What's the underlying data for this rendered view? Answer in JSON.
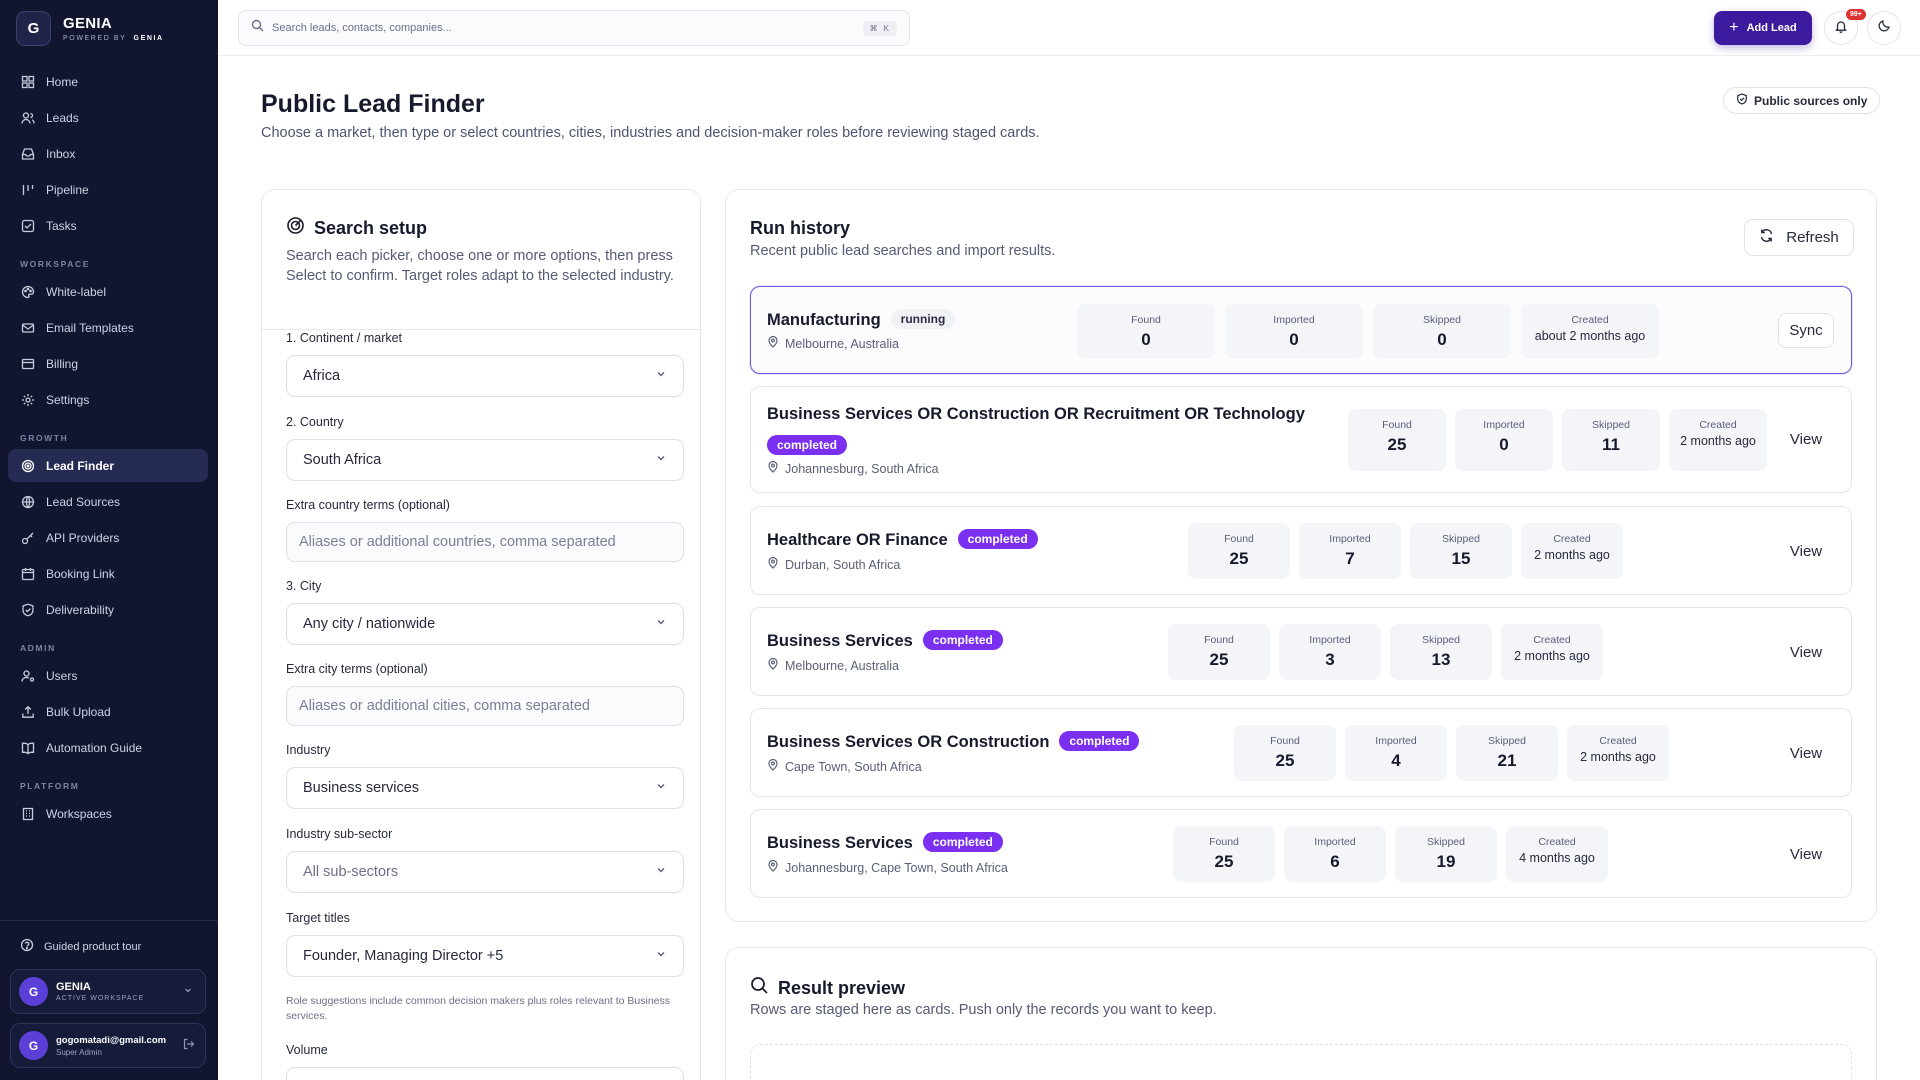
{
  "brand": {
    "logo_letter": "G",
    "name": "GENIA",
    "powered_prefix": "POWERED BY",
    "powered_name": "GENIA"
  },
  "nav": {
    "main": [
      {
        "label": "Home",
        "icon": "home-icon"
      },
      {
        "label": "Leads",
        "icon": "users-icon"
      },
      {
        "label": "Inbox",
        "icon": "inbox-icon"
      },
      {
        "label": "Pipeline",
        "icon": "pipeline-icon"
      },
      {
        "label": "Tasks",
        "icon": "tasks-icon"
      }
    ],
    "workspace_title": "WORKSPACE",
    "workspace": [
      {
        "label": "White-label",
        "icon": "palette-icon"
      },
      {
        "label": "Email Templates",
        "icon": "mail-icon"
      },
      {
        "label": "Billing",
        "icon": "card-icon"
      },
      {
        "label": "Settings",
        "icon": "gear-icon"
      }
    ],
    "growth_title": "GROWTH",
    "growth": [
      {
        "label": "Lead Finder",
        "icon": "target-icon",
        "active": true
      },
      {
        "label": "Lead Sources",
        "icon": "globe-icon"
      },
      {
        "label": "API Providers",
        "icon": "key-icon"
      },
      {
        "label": "Booking Link",
        "icon": "calendar-icon"
      },
      {
        "label": "Deliverability",
        "icon": "shield-icon"
      }
    ],
    "admin_title": "ADMIN",
    "admin": [
      {
        "label": "Users",
        "icon": "user-cog-icon"
      },
      {
        "label": "Bulk Upload",
        "icon": "upload-icon"
      },
      {
        "label": "Automation Guide",
        "icon": "book-icon"
      }
    ],
    "platform_title": "PLATFORM",
    "platform": [
      {
        "label": "Workspaces",
        "icon": "building-icon"
      }
    ]
  },
  "sidebar_footer": {
    "tour_label": "Guided product tour",
    "workspace": {
      "avatar": "G",
      "name": "GENIA",
      "sub": "ACTIVE WORKSPACE"
    },
    "user": {
      "avatar": "G",
      "email": "gogomatadi@gmail.com",
      "role": "Super Admin"
    }
  },
  "topbar": {
    "search_placeholder": "Search leads, contacts, companies...",
    "shortcut": "⌘ K",
    "add_lead_label": "Add Lead",
    "notif_count": "99+"
  },
  "page": {
    "title": "Public Lead Finder",
    "subtitle": "Choose a market, then type or select countries, cities, industries and decision-maker roles before reviewing staged cards.",
    "public_badge": "Public sources only"
  },
  "setup": {
    "title": "Search setup",
    "description": "Search each picker, choose one or more options, then press Select to confirm. Target roles adapt to the selected industry.",
    "continent_label": "1. Continent / market",
    "continent_value": "Africa",
    "country_label": "2. Country",
    "country_value": "South Africa",
    "extra_country_label": "Extra country terms (optional)",
    "extra_country_placeholder": "Aliases or additional countries, comma separated",
    "city_label": "3. City",
    "city_value": "Any city / nationwide",
    "extra_city_label": "Extra city terms (optional)",
    "extra_city_placeholder": "Aliases or additional cities, comma separated",
    "industry_label": "Industry",
    "industry_value": "Business services",
    "subsector_label": "Industry sub-sector",
    "subsector_value": "All sub-sectors",
    "titles_label": "Target titles",
    "titles_value": "Founder, Managing Director +5",
    "hint": "Role suggestions include common decision makers plus roles relevant to Business services.",
    "volume_label": "Volume"
  },
  "history": {
    "title": "Run history",
    "subtitle": "Recent public lead searches and import results.",
    "refresh_label": "Refresh",
    "labels": {
      "found": "Found",
      "imported": "Imported",
      "skipped": "Skipped",
      "created": "Created"
    },
    "runs": [
      {
        "name": "Manufacturing",
        "status": "running",
        "location": "Melbourne, Australia",
        "found": "0",
        "imported": "0",
        "skipped": "0",
        "created": "about 2 months ago",
        "action": "Sync"
      },
      {
        "name": "Business Services OR Construction OR Recruitment OR Technology",
        "status": "completed",
        "location": "Johannesburg, South Africa",
        "found": "25",
        "imported": "0",
        "skipped": "11",
        "created": "2 months ago",
        "action": "View"
      },
      {
        "name": "Healthcare OR Finance",
        "status": "completed",
        "location": "Durban, South Africa",
        "found": "25",
        "imported": "7",
        "skipped": "15",
        "created": "2 months ago",
        "action": "View"
      },
      {
        "name": "Business Services",
        "status": "completed",
        "location": "Melbourne, Australia",
        "found": "25",
        "imported": "3",
        "skipped": "13",
        "created": "2 months ago",
        "action": "View"
      },
      {
        "name": "Business Services OR Construction",
        "status": "completed",
        "location": "Cape Town, South Africa",
        "found": "25",
        "imported": "4",
        "skipped": "21",
        "created": "2 months ago",
        "action": "View"
      },
      {
        "name": "Business Services",
        "status": "completed",
        "location": "Johannesburg, Cape Town, South Africa",
        "found": "25",
        "imported": "6",
        "skipped": "19",
        "created": "4 months ago",
        "action": "View"
      }
    ]
  },
  "preview": {
    "title": "Result preview",
    "subtitle": "Rows are staged here as cards. Push only the records you want to keep."
  }
}
